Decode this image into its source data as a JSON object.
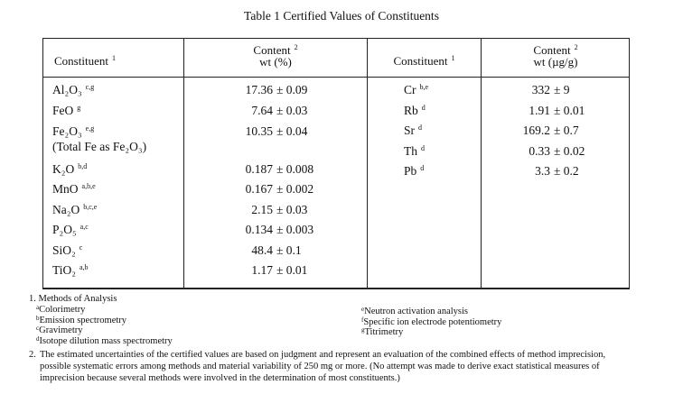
{
  "title": "Table 1 Certified Values of Constituents",
  "headers": {
    "left_constituent": "Constituent",
    "left_constituent_sup": "1",
    "left_content_line1": "Content",
    "left_content_sup": "2",
    "left_content_line2": "wt (%)",
    "right_constituent": "Constituent",
    "right_constituent_sup": "1",
    "right_content_line1": "Content",
    "right_content_sup": "2",
    "right_content_line2": "wt (µg/g)"
  },
  "left_rows": [
    {
      "name": "Al₂O₃",
      "methods": "c,g",
      "value": "17.36",
      "uncertainty": "± 0.09"
    },
    {
      "name": "FeO",
      "methods": "g",
      "value": "7.64",
      "uncertainty": "± 0.03"
    },
    {
      "name": "Fe₂O₃",
      "methods": "e,g",
      "value": "10.35",
      "uncertainty": "± 0.04",
      "note": "(Total Fe as Fe₂O₃)"
    },
    {
      "name": "K₂O",
      "methods": "b,d",
      "value": "0.187",
      "uncertainty": "± 0.008"
    },
    {
      "name": "MnO",
      "methods": "a,b,e",
      "value": "0.167",
      "uncertainty": "± 0.002"
    },
    {
      "name": "Na₂O",
      "methods": "b,c,e",
      "value": "2.15",
      "uncertainty": "± 0.03"
    },
    {
      "name": "P₂O₅",
      "methods": "a,c",
      "value": "0.134",
      "uncertainty": "± 0.003"
    },
    {
      "name": "SiO₂",
      "methods": "c",
      "value": "48.4",
      "uncertainty": "± 0.1"
    },
    {
      "name": "TiO₂",
      "methods": "a,b",
      "value": "1.17",
      "uncertainty": "± 0.01"
    }
  ],
  "right_rows": [
    {
      "name": "Cr",
      "methods": "b,e",
      "value": "332",
      "uncertainty": "± 9"
    },
    {
      "name": "Rb",
      "methods": "d",
      "value": "1.91",
      "uncertainty": "± 0.01"
    },
    {
      "name": "Sr",
      "methods": "d",
      "value": "169.2",
      "uncertainty": "± 0.7"
    },
    {
      "name": "Th",
      "methods": "d",
      "value": "0.33",
      "uncertainty": "± 0.02"
    },
    {
      "name": "Pb",
      "methods": "d",
      "value": "3.3",
      "uncertainty": "± 0.2"
    }
  ],
  "footnotes": {
    "note1_title": "1.  Methods of Analysis",
    "methods": [
      {
        "key": "a",
        "label": "Colorimetry"
      },
      {
        "key": "b",
        "label": "Emission spectrometry"
      },
      {
        "key": "c",
        "label": "Gravimetry"
      },
      {
        "key": "d",
        "label": "Isotope dilution mass spectrometry"
      },
      {
        "key": "e",
        "label": "Neutron activation analysis"
      },
      {
        "key": "f",
        "label": "Specific ion electrode potentiometry"
      },
      {
        "key": "g",
        "label": "Titrimetry"
      }
    ],
    "note2_number": "2.",
    "note2_line1": "The estimated uncertainties of the certified values are based on judgment and represent an evaluation of the combined effects of method imprecision,",
    "note2_line2": "possible systematic errors among methods and material variability of 250 mg or more. (No attempt was made to derive exact statistical measures of",
    "note2_line3": "imprecision because several methods were involved in the determination of most constituents.)"
  }
}
